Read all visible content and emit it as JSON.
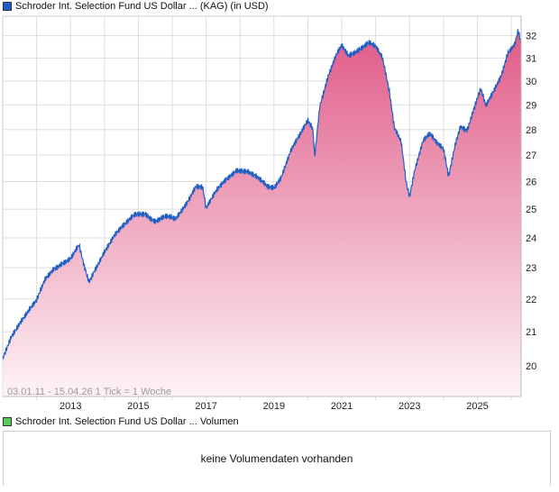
{
  "chart_data": {
    "type": "area",
    "title": "Schroder Int. Selection Fund US Dollar ... (KAG) (in USD)",
    "range_label": "03.01.11 - 15.04.26",
    "tick_label": "1 Tick = 1 Woche",
    "xlabel": "",
    "ylabel": "",
    "x_tick_labels": [
      "2013",
      "2015",
      "2017",
      "2019",
      "2021",
      "2023",
      "2025"
    ],
    "y_tick_labels": [
      "20",
      "21",
      "22",
      "23",
      "24",
      "25",
      "26",
      "27",
      "28",
      "29",
      "30",
      "31",
      "32"
    ],
    "xlim": [
      2011.0,
      2026.29
    ],
    "ylim": [
      19.15,
      32.9
    ],
    "y_scale": "log",
    "grid": true,
    "colors": {
      "line": "#1f5fc4",
      "fill_top": "#e05a87",
      "fill_bottom": "#fdf3f6",
      "legend": "#1f5fc4"
    },
    "x": [
      2011.0,
      2011.25,
      2011.5,
      2011.75,
      2012.0,
      2012.25,
      2012.5,
      2012.75,
      2013.0,
      2013.25,
      2013.4,
      2013.55,
      2013.7,
      2014.0,
      2014.3,
      2014.6,
      2014.9,
      2015.2,
      2015.5,
      2015.8,
      2016.1,
      2016.4,
      2016.7,
      2016.9,
      2017.0,
      2017.3,
      2017.6,
      2017.9,
      2018.2,
      2018.5,
      2018.8,
      2019.0,
      2019.2,
      2019.5,
      2019.8,
      2020.0,
      2020.15,
      2020.2,
      2020.35,
      2020.6,
      2020.85,
      2021.0,
      2021.2,
      2021.4,
      2021.6,
      2021.8,
      2022.0,
      2022.2,
      2022.4,
      2022.55,
      2022.75,
      2022.9,
      2023.0,
      2023.15,
      2023.4,
      2023.6,
      2023.8,
      2024.0,
      2024.15,
      2024.35,
      2024.5,
      2024.7,
      2024.9,
      2025.1,
      2025.25,
      2025.45,
      2025.7,
      2025.9,
      2026.1,
      2026.2,
      2026.29
    ],
    "values": [
      20.2,
      20.9,
      21.3,
      21.6,
      21.9,
      22.6,
      23.0,
      23.2,
      23.3,
      23.7,
      23.0,
      22.5,
      22.9,
      23.6,
      24.1,
      24.4,
      24.8,
      24.9,
      24.6,
      24.7,
      24.6,
      25.2,
      25.9,
      25.8,
      25.0,
      25.6,
      26.1,
      26.5,
      26.4,
      26.1,
      25.8,
      25.8,
      26.2,
      27.2,
      27.8,
      28.3,
      28.0,
      26.9,
      29.0,
      30.3,
      31.2,
      31.5,
      31.0,
      31.2,
      31.5,
      31.8,
      31.6,
      31.0,
      29.5,
      28.0,
      27.5,
      26.0,
      25.5,
      26.5,
      27.6,
      27.8,
      27.4,
      27.2,
      26.2,
      27.5,
      28.2,
      28.0,
      28.8,
      29.6,
      28.9,
      29.5,
      30.3,
      31.3,
      31.6,
      32.2,
      31.6
    ]
  },
  "volume_panel": {
    "title": "Schroder Int. Selection Fund US Dollar ... Volumen",
    "empty_message": "keine Volumendaten vorhanden",
    "legend_color": "#5cc95c"
  }
}
